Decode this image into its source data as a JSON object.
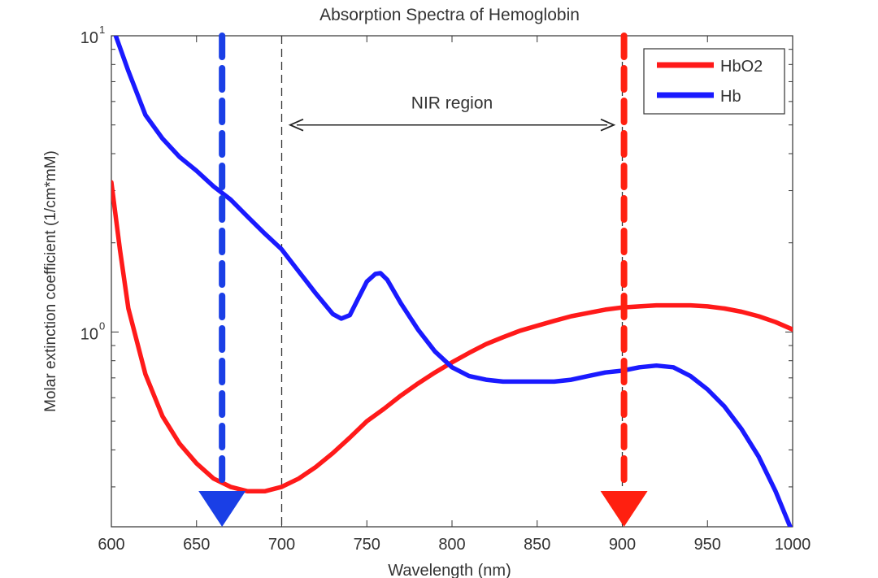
{
  "chart_data": {
    "type": "line",
    "title": "Absorption Spectra of Hemoglobin",
    "xlabel": "Wavelength (nm)",
    "ylabel": "Molar extinction coefficient (1/cm*mM)",
    "xlim": [
      600,
      1000
    ],
    "ylim": [
      0.22,
      10
    ],
    "yscale": "log",
    "x_ticks": [
      "600",
      "650",
      "700",
      "750",
      "800",
      "850",
      "900",
      "950",
      "1000"
    ],
    "y_ticks": [
      {
        "base": "10",
        "exp": "0"
      },
      {
        "base": "10",
        "exp": "1"
      }
    ],
    "legend_position": "top-right",
    "series": [
      {
        "name": "HbO2",
        "color": "#ff1a1a",
        "x": [
          600,
          605,
          610,
          620,
          630,
          640,
          650,
          660,
          670,
          680,
          690,
          700,
          710,
          720,
          730,
          740,
          750,
          760,
          770,
          780,
          790,
          800,
          810,
          820,
          830,
          840,
          850,
          860,
          870,
          880,
          890,
          900,
          910,
          920,
          930,
          940,
          950,
          960,
          970,
          980,
          990,
          1000
        ],
        "values": [
          3.2,
          1.9,
          1.2,
          0.72,
          0.52,
          0.42,
          0.36,
          0.32,
          0.3,
          0.29,
          0.29,
          0.3,
          0.32,
          0.35,
          0.39,
          0.44,
          0.5,
          0.55,
          0.61,
          0.67,
          0.73,
          0.79,
          0.85,
          0.91,
          0.96,
          1.01,
          1.05,
          1.09,
          1.13,
          1.16,
          1.19,
          1.21,
          1.22,
          1.23,
          1.23,
          1.23,
          1.22,
          1.2,
          1.17,
          1.13,
          1.08,
          1.02
        ]
      },
      {
        "name": "Hb",
        "color": "#1a1aff",
        "x": [
          600,
          610,
          620,
          630,
          640,
          650,
          660,
          670,
          680,
          690,
          700,
          710,
          720,
          730,
          735,
          740,
          745,
          750,
          755,
          758,
          762,
          770,
          780,
          790,
          800,
          810,
          820,
          830,
          840,
          850,
          860,
          870,
          880,
          890,
          900,
          910,
          920,
          930,
          940,
          950,
          960,
          970,
          980,
          990,
          1000
        ],
        "values": [
          11,
          7.6,
          5.4,
          4.5,
          3.9,
          3.5,
          3.1,
          2.8,
          2.45,
          2.15,
          1.9,
          1.6,
          1.35,
          1.15,
          1.11,
          1.14,
          1.3,
          1.48,
          1.57,
          1.58,
          1.5,
          1.25,
          1.02,
          0.86,
          0.76,
          0.71,
          0.69,
          0.68,
          0.68,
          0.68,
          0.68,
          0.69,
          0.71,
          0.73,
          0.74,
          0.76,
          0.77,
          0.76,
          0.71,
          0.64,
          0.56,
          0.47,
          0.38,
          0.29,
          0.21
        ]
      }
    ],
    "annotations": [
      {
        "kind": "vline",
        "x": 700,
        "style": "dashed",
        "color": "#333333"
      },
      {
        "kind": "vline",
        "x": 900,
        "style": "dashed",
        "color": "#333333"
      },
      {
        "kind": "double-arrow",
        "x_from": 705,
        "x_to": 895,
        "y": 5.0,
        "text": "NIR region"
      },
      {
        "kind": "arrow-down",
        "x": 665,
        "color": "#1a3fe6"
      },
      {
        "kind": "arrow-down",
        "x": 901,
        "color": "#ff2010"
      }
    ]
  }
}
